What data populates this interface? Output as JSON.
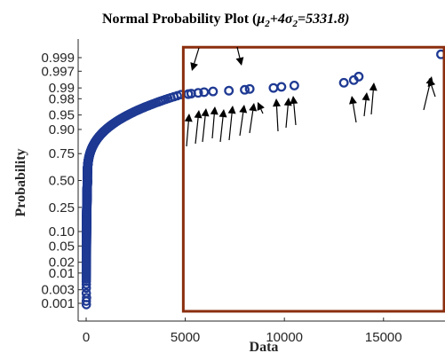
{
  "chart_data": {
    "type": "scatter",
    "title": {
      "prefix": "Normal Probability Plot (",
      "mu": "μ",
      "sub_mu": "2",
      "plus": "+4",
      "sigma": "σ",
      "sub_sigma": "2",
      "value": "=5331.8)"
    },
    "xlabel": "Data",
    "ylabel": "Probability",
    "xlim": [
      -300,
      18000
    ],
    "x_ticks": [
      0,
      5000,
      10000,
      15000
    ],
    "y_ticks": [
      0.001,
      0.003,
      0.01,
      0.02,
      0.05,
      0.1,
      0.25,
      0.5,
      0.75,
      0.9,
      0.95,
      0.98,
      0.99,
      0.997,
      0.999
    ],
    "y_tick_labels": [
      "0.001",
      "0.003",
      "0.01",
      "0.02",
      "0.05",
      "0.10",
      "0.25",
      "0.50",
      "0.75",
      "0.90",
      "0.95",
      "0.98",
      "0.99",
      "0.997",
      "0.999"
    ],
    "grid": false,
    "marker": "open-circle",
    "marker_color": "#1F3A93",
    "outlier_points": [
      {
        "x": 5150,
        "y": 0.985
      },
      {
        "x": 5300,
        "y": 0.9855
      },
      {
        "x": 5650,
        "y": 0.9862
      },
      {
        "x": 5950,
        "y": 0.9868
      },
      {
        "x": 6400,
        "y": 0.9874
      },
      {
        "x": 7200,
        "y": 0.988
      },
      {
        "x": 8000,
        "y": 0.9887
      },
      {
        "x": 8250,
        "y": 0.9893
      },
      {
        "x": 9450,
        "y": 0.99
      },
      {
        "x": 9850,
        "y": 0.9907
      },
      {
        "x": 10500,
        "y": 0.9915
      },
      {
        "x": 13000,
        "y": 0.993
      },
      {
        "x": 13500,
        "y": 0.9942
      },
      {
        "x": 13750,
        "y": 0.9955
      },
      {
        "x": 17900,
        "y": 0.99925
      }
    ],
    "highlight_box": {
      "x_from": 4900,
      "x_to": 18000,
      "y_from": 0.0005,
      "y_to": 0.9996,
      "color": "#8B2E0E"
    },
    "arrow_color": "#000000"
  }
}
